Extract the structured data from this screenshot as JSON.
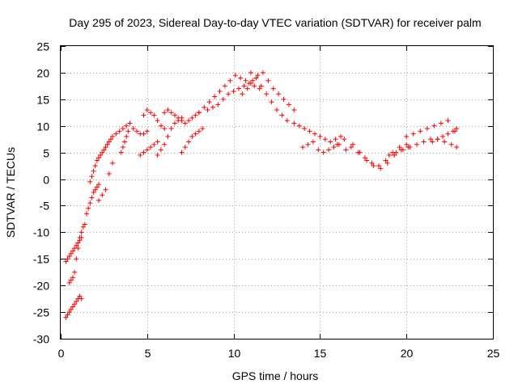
{
  "chart_data": {
    "type": "scatter",
    "title": "Day 295 of 2023, Sidereal Day-to-day VTEC variation (SDTVAR) for receiver palm",
    "xlabel": "GPS time / hours",
    "ylabel": "SDTVAR / TECUs",
    "xlim": [
      0,
      25
    ],
    "ylim": [
      -30,
      25
    ],
    "xticks": [
      0,
      5,
      10,
      15,
      20,
      25
    ],
    "xtick_labels": [
      "0",
      "5",
      "10",
      "15",
      "20",
      "25"
    ],
    "yticks": [
      -30,
      -25,
      -20,
      -15,
      -10,
      -5,
      0,
      5,
      10,
      15,
      20,
      25
    ],
    "ytick_labels": [
      "-30",
      "-25",
      "-20",
      "-15",
      "-10",
      "-5",
      "0",
      "5",
      "10",
      "15",
      "20",
      "25"
    ],
    "grid": true,
    "marker": "+",
    "series": [
      {
        "name": "SDTVAR",
        "color": "#ff0000",
        "x": [
          0.3,
          0.4,
          0.5,
          0.6,
          0.7,
          0.8,
          0.9,
          1.0,
          1.1,
          1.2,
          0.3,
          0.4,
          0.5,
          0.6,
          0.7,
          0.8,
          0.9,
          1.0,
          1.1,
          1.2,
          0.5,
          0.6,
          0.7,
          0.8,
          0.9,
          1.0,
          1.1,
          1.2,
          1.3,
          1.4,
          1.5,
          1.6,
          1.7,
          1.8,
          1.9,
          2.0,
          2.1,
          2.2,
          1.7,
          1.8,
          1.9,
          2.0,
          2.1,
          2.2,
          2.3,
          2.4,
          2.5,
          2.6,
          2.7,
          2.8,
          2.9,
          3.0,
          2.2,
          2.4,
          2.6,
          2.8,
          3.0,
          3.5,
          3.6,
          3.7,
          3.8,
          3.9,
          3.2,
          3.4,
          3.6,
          3.8,
          4.0,
          4.2,
          4.4,
          4.6,
          4.8,
          5.0,
          4.8,
          5.0,
          5.2,
          5.4,
          5.6,
          5.8,
          6.0,
          4.6,
          4.8,
          5.0,
          5.2,
          5.4,
          5.6,
          6.0,
          6.2,
          6.4,
          6.6,
          6.8,
          7.0,
          7.2,
          7.4,
          7.6,
          7.8,
          8.0,
          5.6,
          5.8,
          6.0,
          6.2,
          6.4,
          6.6,
          6.8,
          7.0,
          7.0,
          7.2,
          7.4,
          7.6,
          7.8,
          8.0,
          8.2,
          8.0,
          8.3,
          8.6,
          8.9,
          9.2,
          9.5,
          9.8,
          10.1,
          10.4,
          10.7,
          11.0,
          8.5,
          8.8,
          9.1,
          9.4,
          9.7,
          10.0,
          10.3,
          10.6,
          10.9,
          11.2,
          11.5,
          10.5,
          10.8,
          11.1,
          11.4,
          11.7,
          12.0,
          12.3,
          12.6,
          12.9,
          13.2,
          13.5,
          11.0,
          11.3,
          11.6,
          11.9,
          12.2,
          12.5,
          12.8,
          13.1,
          13.5,
          13.8,
          14.1,
          14.4,
          14.7,
          15.0,
          15.3,
          15.6,
          15.9,
          16.2,
          14.0,
          14.3,
          14.6,
          14.9,
          15.2,
          15.5,
          15.8,
          16.1,
          16.0,
          16.4,
          16.8,
          17.2,
          17.6,
          18.0,
          18.4,
          18.8,
          19.2,
          19.6,
          20.0,
          16.5,
          16.9,
          17.3,
          17.7,
          18.1,
          18.5,
          18.9,
          19.3,
          19.7,
          20.1,
          19.0,
          19.4,
          19.8,
          20.2,
          20.6,
          21.0,
          21.4,
          21.8,
          22.2,
          22.6,
          22.9,
          20.0,
          20.4,
          20.8,
          21.2,
          21.6,
          22.0,
          22.4,
          22.8,
          21.5,
          21.8,
          22.1,
          22.4,
          22.7,
          22.9
        ],
        "y": [
          -26.0,
          -25.5,
          -25.0,
          -24.5,
          -24.0,
          -23.5,
          -23.0,
          -22.5,
          -22.0,
          -22.5,
          -15.5,
          -15.0,
          -14.5,
          -14.0,
          -13.5,
          -13.0,
          -12.5,
          -12.0,
          -11.5,
          -11.0,
          -19.5,
          -19.0,
          -18.5,
          -17.5,
          -15.0,
          -13.0,
          -11.0,
          -10.0,
          -9.0,
          -8.5,
          -6.5,
          -5.5,
          -4.5,
          -3.5,
          -2.5,
          -2.0,
          -1.5,
          -1.0,
          -0.5,
          0.5,
          1.5,
          2.5,
          3.5,
          4.0,
          4.5,
          5.0,
          5.5,
          6.0,
          6.5,
          7.0,
          7.5,
          8.0,
          -4.0,
          -3.0,
          -2.0,
          1.0,
          3.0,
          5.0,
          6.0,
          7.0,
          8.0,
          9.0,
          8.5,
          9.0,
          9.5,
          10.0,
          10.5,
          9.5,
          9.0,
          8.5,
          8.5,
          9.0,
          12.0,
          13.0,
          12.5,
          12.0,
          11.0,
          10.0,
          9.5,
          4.5,
          5.0,
          5.5,
          6.0,
          6.5,
          7.0,
          12.5,
          13.0,
          12.5,
          12.0,
          11.5,
          11.0,
          10.5,
          11.0,
          11.5,
          12.0,
          12.5,
          4.5,
          5.5,
          6.5,
          8.0,
          9.5,
          10.5,
          11.0,
          11.5,
          5.0,
          6.0,
          7.0,
          8.0,
          8.5,
          9.0,
          9.5,
          12.5,
          13.5,
          14.5,
          15.5,
          16.5,
          17.5,
          18.5,
          19.5,
          19.0,
          18.5,
          18.0,
          13.0,
          13.5,
          14.0,
          15.0,
          16.0,
          16.5,
          17.0,
          17.5,
          18.0,
          17.5,
          17.0,
          16.0,
          17.0,
          18.5,
          19.5,
          20.0,
          18.5,
          17.0,
          16.0,
          15.0,
          14.0,
          13.0,
          20.0,
          19.0,
          17.5,
          16.0,
          14.5,
          13.0,
          12.0,
          11.0,
          10.5,
          10.0,
          9.5,
          9.0,
          8.5,
          8.0,
          7.5,
          7.0,
          7.5,
          8.0,
          6.0,
          6.5,
          7.0,
          5.5,
          5.0,
          5.5,
          6.0,
          6.5,
          6.5,
          7.5,
          6.0,
          5.0,
          4.0,
          3.0,
          2.5,
          3.5,
          5.0,
          6.0,
          6.5,
          5.5,
          6.5,
          5.0,
          3.5,
          2.5,
          2.0,
          3.0,
          4.5,
          5.5,
          6.0,
          4.5,
          5.0,
          5.5,
          6.0,
          6.5,
          7.0,
          7.5,
          7.5,
          7.0,
          6.5,
          6.0,
          8.0,
          8.5,
          9.0,
          9.5,
          10.0,
          10.5,
          11.0,
          9.0,
          7.0,
          7.5,
          8.0,
          8.5,
          9.0,
          9.5
        ]
      }
    ]
  }
}
